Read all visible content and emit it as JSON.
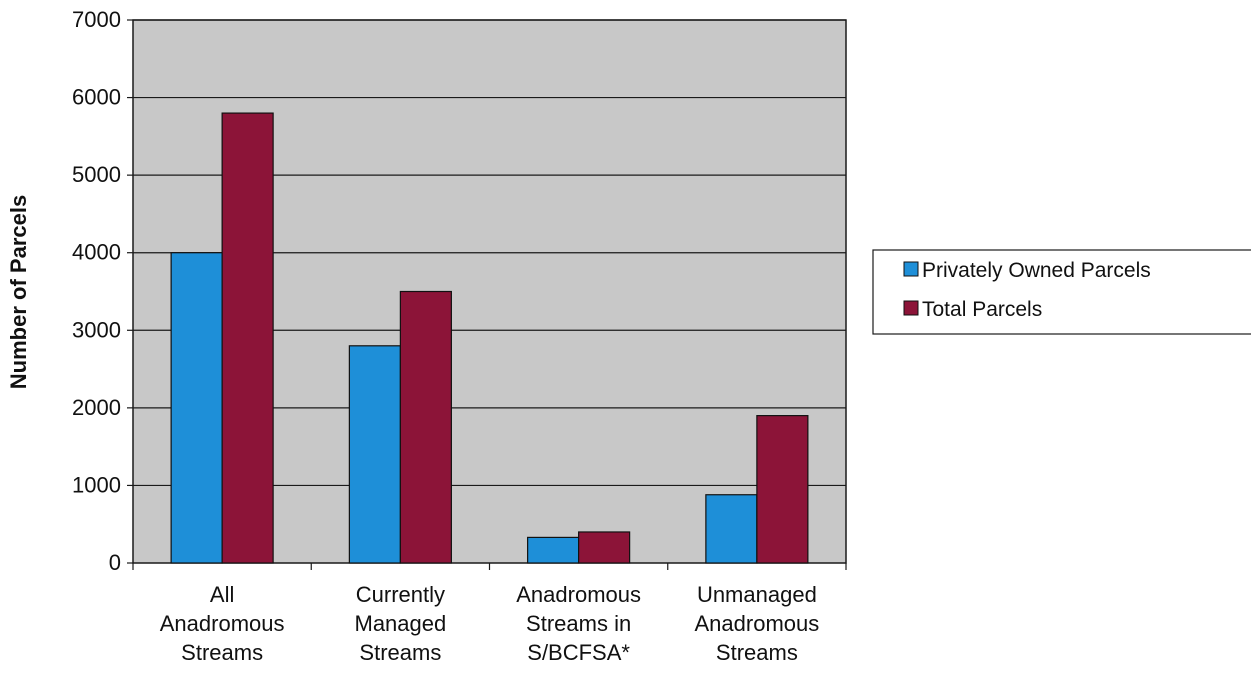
{
  "chart_data": {
    "type": "bar",
    "title": "",
    "xlabel": "",
    "ylabel": "Number of Parcels",
    "ylim": [
      0,
      7000
    ],
    "yticks": [
      0,
      1000,
      2000,
      3000,
      4000,
      5000,
      6000,
      7000
    ],
    "categories": [
      [
        "All",
        "Anadromous",
        "Streams"
      ],
      [
        "Currently",
        "Managed",
        "Streams"
      ],
      [
        "Anadromous",
        "Streams in",
        "S/BCFSA*"
      ],
      [
        "Unmanaged",
        "Anadromous",
        "Streams"
      ]
    ],
    "series": [
      {
        "name": "Privately Owned Parcels",
        "values": [
          4000,
          2800,
          330,
          880
        ],
        "color": "#1e8fd8"
      },
      {
        "name": "Total Parcels",
        "values": [
          5800,
          3500,
          400,
          1900
        ],
        "color": "#8c1438"
      }
    ],
    "grid": true,
    "legend": "right",
    "plot_background": "#c8c8c8"
  }
}
